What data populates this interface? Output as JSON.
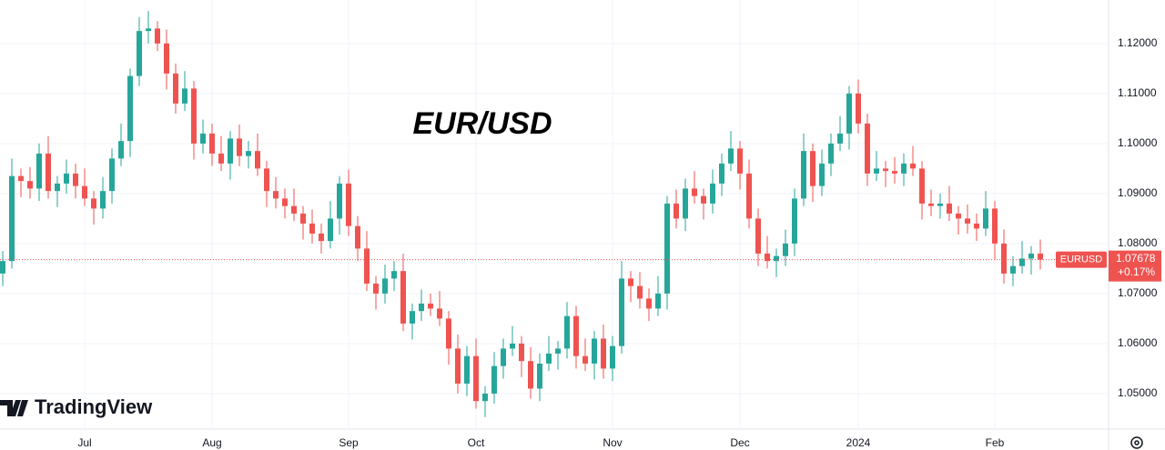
{
  "chart_data": {
    "type": "candlestick",
    "title": "EUR/USD",
    "logo_text": "TradingView",
    "symbol": "EURUSD",
    "last_price": 1.07678,
    "last_change": {
      "value": 0.17,
      "label": "+0.17%"
    },
    "up_color": "#26a69a",
    "down_color": "#ef5350",
    "grid": true,
    "ylim": [
      1.0429,
      1.1287
    ],
    "yticks": [
      {
        "value": 1.05,
        "label": "1.05000"
      },
      {
        "value": 1.06,
        "label": "1.06000"
      },
      {
        "value": 1.07,
        "label": "1.07000"
      },
      {
        "value": 1.08,
        "label": "1.08000"
      },
      {
        "value": 1.09,
        "label": "1.09000"
      },
      {
        "value": 1.1,
        "label": "1.10000"
      },
      {
        "value": 1.11,
        "label": "1.11000"
      },
      {
        "value": 1.12,
        "label": "1.12000"
      }
    ],
    "categories": [
      null,
      null,
      null,
      null,
      null,
      null,
      null,
      null,
      null,
      "Jul",
      null,
      null,
      null,
      null,
      null,
      null,
      null,
      null,
      null,
      null,
      null,
      null,
      null,
      "Aug",
      null,
      null,
      null,
      null,
      null,
      null,
      null,
      null,
      null,
      null,
      null,
      null,
      null,
      null,
      "Sep",
      null,
      null,
      null,
      null,
      null,
      null,
      null,
      null,
      null,
      null,
      null,
      null,
      null,
      "Oct",
      null,
      null,
      null,
      null,
      null,
      null,
      null,
      null,
      null,
      null,
      null,
      null,
      null,
      null,
      "Nov",
      null,
      null,
      null,
      null,
      null,
      null,
      null,
      null,
      null,
      null,
      null,
      null,
      null,
      "Dec",
      null,
      null,
      null,
      null,
      null,
      null,
      null,
      null,
      null,
      null,
      null,
      null,
      "2024",
      null,
      null,
      null,
      null,
      null,
      null,
      null,
      null,
      null,
      null,
      null,
      null,
      null,
      null,
      "Feb",
      null,
      null,
      null,
      null,
      null
    ],
    "open": [
      1.074,
      1.0765,
      1.0935,
      1.0925,
      1.091,
      1.098,
      1.0905,
      1.092,
      1.094,
      1.0915,
      1.089,
      1.087,
      1.0905,
      1.097,
      1.1005,
      1.1135,
      1.1225,
      1.123,
      1.12,
      1.114,
      1.108,
      1.111,
      1.1,
      1.102,
      1.098,
      1.096,
      1.101,
      1.0975,
      1.0985,
      1.095,
      1.0905,
      1.089,
      1.0875,
      1.086,
      1.084,
      1.082,
      1.0805,
      1.085,
      1.092,
      1.0835,
      1.079,
      1.072,
      1.07,
      1.073,
      1.0745,
      1.064,
      1.0665,
      1.068,
      1.067,
      1.065,
      1.059,
      1.052,
      1.0575,
      1.0485,
      1.05,
      1.0555,
      1.059,
      1.06,
      1.0565,
      1.051,
      1.056,
      1.058,
      1.059,
      1.0655,
      1.0575,
      1.056,
      1.061,
      1.055,
      1.0595,
      1.073,
      1.0715,
      1.069,
      1.067,
      1.07,
      1.088,
      1.085,
      1.091,
      1.0895,
      1.088,
      1.092,
      1.096,
      1.099,
      1.094,
      1.085,
      1.078,
      1.0765,
      1.0775,
      1.08,
      1.089,
      1.0985,
      1.0915,
      1.096,
      1.1,
      1.102,
      1.11,
      1.104,
      1.094,
      1.095,
      1.0945,
      1.094,
      1.096,
      1.095,
      1.088,
      1.0875,
      1.088,
      1.086,
      1.085,
      1.084,
      1.083,
      1.087,
      1.08,
      1.074,
      1.0755,
      1.077,
      1.078
    ],
    "high": [
      1.0785,
      1.097,
      1.095,
      1.0953,
      1.1,
      1.1015,
      1.0935,
      1.0968,
      1.096,
      1.095,
      1.0905,
      1.0933,
      1.099,
      1.104,
      1.115,
      1.1253,
      1.1265,
      1.1245,
      1.1228,
      1.116,
      1.1145,
      1.1125,
      1.1048,
      1.104,
      1.1015,
      1.1025,
      1.1038,
      1.1005,
      1.102,
      1.0965,
      1.0933,
      1.091,
      1.091,
      1.0875,
      1.0868,
      1.084,
      1.0885,
      1.0935,
      1.0948,
      1.0855,
      1.0825,
      1.0735,
      1.0758,
      1.0765,
      1.078,
      1.068,
      1.0708,
      1.07,
      1.0705,
      1.0665,
      1.0618,
      1.0595,
      1.061,
      1.0515,
      1.0583,
      1.061,
      1.0635,
      1.0615,
      1.0593,
      1.058,
      1.0615,
      1.0605,
      1.0683,
      1.0675,
      1.061,
      1.0625,
      1.0638,
      1.0615,
      1.0765,
      1.0745,
      1.0743,
      1.071,
      1.0735,
      1.0895,
      1.0908,
      1.093,
      1.0945,
      1.091,
      1.0948,
      1.098,
      1.1025,
      1.1005,
      1.0968,
      1.087,
      1.0815,
      1.079,
      1.0828,
      1.091,
      1.102,
      1.1,
      1.0988,
      1.102,
      1.1055,
      1.1115,
      1.1128,
      1.106,
      1.0985,
      1.0965,
      1.0973,
      1.098,
      1.0995,
      1.0965,
      1.0908,
      1.09,
      1.0915,
      1.0875,
      1.0878,
      1.086,
      1.0905,
      1.0885,
      1.0828,
      1.0775,
      1.0805,
      1.0795,
      1.0808
    ],
    "low": [
      1.0715,
      1.075,
      1.0893,
      1.089,
      1.0885,
      1.089,
      1.0873,
      1.09,
      1.089,
      1.0875,
      1.0838,
      1.085,
      1.088,
      1.0955,
      1.0973,
      1.1115,
      1.12,
      1.1185,
      1.1108,
      1.106,
      1.1065,
      1.0968,
      1.098,
      1.0955,
      1.0945,
      1.0928,
      1.0955,
      1.095,
      1.0935,
      1.0873,
      1.087,
      1.085,
      1.0845,
      1.0808,
      1.08,
      1.078,
      1.079,
      1.0818,
      1.0815,
      1.0765,
      1.0705,
      1.0668,
      1.068,
      1.0705,
      1.0625,
      1.0608,
      1.0645,
      1.0655,
      1.0635,
      1.0558,
      1.05,
      1.0495,
      1.047,
      1.0453,
      1.048,
      1.053,
      1.0575,
      1.0533,
      1.049,
      1.0485,
      1.0545,
      1.0548,
      1.057,
      1.055,
      1.0545,
      1.0528,
      1.053,
      1.0525,
      1.058,
      1.0683,
      1.067,
      1.0645,
      1.0655,
      1.0668,
      1.083,
      1.0825,
      1.088,
      1.0848,
      1.086,
      1.0895,
      1.0945,
      1.0908,
      1.083,
      1.0755,
      1.075,
      1.0733,
      1.0755,
      1.0775,
      1.0875,
      1.0883,
      1.0895,
      1.0935,
      1.0985,
      1.0988,
      1.102,
      1.0915,
      1.0925,
      1.0913,
      1.092,
      1.0915,
      1.0935,
      1.0848,
      1.0855,
      1.085,
      1.0845,
      1.0818,
      1.082,
      1.0805,
      1.0815,
      1.0768,
      1.072,
      1.0715,
      1.074,
      1.0738,
      1.0748
    ],
    "close": [
      1.0765,
      1.0935,
      1.0925,
      1.091,
      1.098,
      1.0905,
      1.092,
      1.094,
      1.0915,
      1.089,
      1.087,
      1.0905,
      1.097,
      1.1005,
      1.1135,
      1.1225,
      1.123,
      1.12,
      1.114,
      1.108,
      1.111,
      1.1,
      1.102,
      1.098,
      1.096,
      1.101,
      1.0975,
      1.0985,
      1.095,
      1.0905,
      1.089,
      1.0875,
      1.086,
      1.084,
      1.082,
      1.0805,
      1.085,
      1.092,
      1.0835,
      1.079,
      1.072,
      1.07,
      1.073,
      1.0745,
      1.064,
      1.0665,
      1.068,
      1.067,
      1.065,
      1.059,
      1.052,
      1.0575,
      1.0485,
      1.05,
      1.0555,
      1.059,
      1.06,
      1.0565,
      1.051,
      1.056,
      1.058,
      1.059,
      1.0655,
      1.0575,
      1.056,
      1.061,
      1.055,
      1.0595,
      1.073,
      1.0715,
      1.069,
      1.067,
      1.07,
      1.088,
      1.085,
      1.091,
      1.0895,
      1.088,
      1.092,
      1.096,
      1.099,
      1.094,
      1.085,
      1.078,
      1.0765,
      1.0775,
      1.08,
      1.089,
      1.0985,
      1.0915,
      1.096,
      1.1,
      1.102,
      1.11,
      1.104,
      1.094,
      1.095,
      1.0945,
      1.094,
      1.096,
      1.095,
      1.088,
      1.0875,
      1.088,
      1.086,
      1.085,
      1.084,
      1.083,
      1.087,
      1.08,
      1.074,
      1.0755,
      1.077,
      1.078,
      1.0768
    ]
  }
}
